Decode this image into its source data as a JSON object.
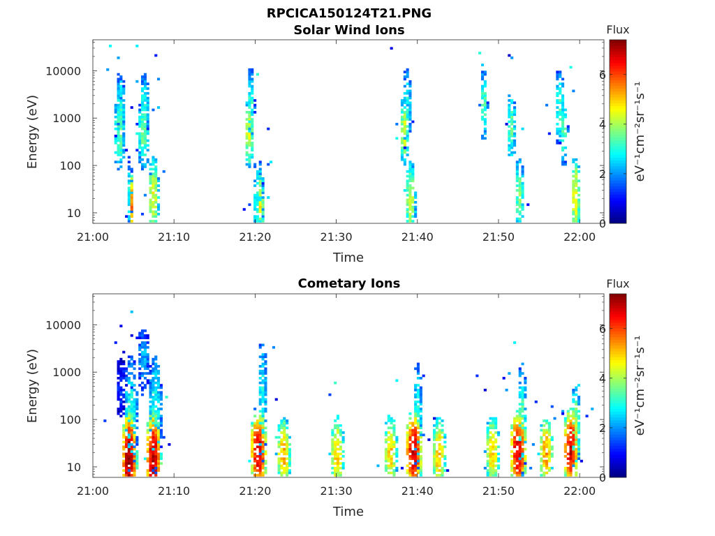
{
  "figure_title": "RPCICA150124T21.PNG",
  "colorbar": {
    "label_prefix": "Flux",
    "units_html": "eV⁻¹cm⁻²sr⁻¹s⁻¹",
    "ticks": [
      "0",
      "2",
      "4",
      "6"
    ],
    "range": [
      0,
      7.4
    ],
    "colormap": "jet"
  },
  "chart_data": [
    {
      "type": "heatmap",
      "title": "Solar Wind Ions",
      "xlabel": "Time",
      "ylabel": "Energy (eV)",
      "x_ticks": [
        "21:00",
        "21:10",
        "21:20",
        "21:30",
        "21:40",
        "21:50",
        "22:00"
      ],
      "y_ticks": [
        "10",
        "100",
        "1000",
        "10000"
      ],
      "y_scale": "log",
      "xlim_minutes": [
        0,
        63
      ],
      "ylim": [
        6,
        45000
      ],
      "blobs": [
        {
          "t": 3.0,
          "e": 450,
          "v": 3.5,
          "dt": 0.8,
          "de": 1.6
        },
        {
          "t": 3.2,
          "e": 1300,
          "v": 3.0,
          "dt": 0.6,
          "de": 1.8
        },
        {
          "t": 3.2,
          "e": 2000,
          "v": 3.0,
          "dt": 0.6,
          "de": 1.2
        },
        {
          "t": 6.0,
          "e": 450,
          "v": 3.5,
          "dt": 0.8,
          "de": 1.6
        },
        {
          "t": 6.3,
          "e": 1700,
          "v": 3.0,
          "dt": 0.6,
          "de": 1.4
        },
        {
          "t": 4.4,
          "e": 22,
          "v": 3.0,
          "dt": 0.4,
          "de": 1.5
        },
        {
          "t": 4.7,
          "e": 14,
          "v": 5.6,
          "dt": 0.3,
          "de": 1.5
        },
        {
          "t": 7.3,
          "e": 20,
          "v": 4.5,
          "dt": 0.7,
          "de": 1.8
        },
        {
          "t": 19.0,
          "e": 450,
          "v": 4.5,
          "dt": 0.6,
          "de": 1.5
        },
        {
          "t": 19.2,
          "e": 1500,
          "v": 3.2,
          "dt": 0.5,
          "de": 1.8
        },
        {
          "t": 20.3,
          "e": 18,
          "v": 3.0,
          "dt": 0.7,
          "de": 1.8
        },
        {
          "t": 20.6,
          "e": 14,
          "v": 4.7,
          "dt": 0.4,
          "de": 1.5
        },
        {
          "t": 38.2,
          "e": 500,
          "v": 4.3,
          "dt": 0.6,
          "de": 1.5
        },
        {
          "t": 38.5,
          "e": 1400,
          "v": 3.0,
          "dt": 0.6,
          "de": 1.8
        },
        {
          "t": 39.1,
          "e": 18,
          "v": 4.2,
          "dt": 0.7,
          "de": 1.7
        },
        {
          "t": 48.1,
          "e": 1700,
          "v": 3.4,
          "dt": 0.5,
          "de": 1.5
        },
        {
          "t": 51.5,
          "e": 600,
          "v": 3.4,
          "dt": 0.6,
          "de": 1.6
        },
        {
          "t": 52.3,
          "e": 20,
          "v": 3.6,
          "dt": 0.6,
          "de": 1.8
        },
        {
          "t": 57.3,
          "e": 1600,
          "v": 3.2,
          "dt": 0.6,
          "de": 1.7
        },
        {
          "t": 57.8,
          "e": 500,
          "v": 3.6,
          "dt": 0.5,
          "de": 1.4
        },
        {
          "t": 59.2,
          "e": 20,
          "v": 4.6,
          "dt": 0.6,
          "de": 1.8
        }
      ]
    },
    {
      "type": "heatmap",
      "title": "Cometary Ions",
      "xlabel": "Time",
      "ylabel": "Energy (eV)",
      "x_ticks": [
        "21:00",
        "21:10",
        "21:20",
        "21:30",
        "21:40",
        "21:50",
        "22:00"
      ],
      "y_ticks": [
        "10",
        "100",
        "1000",
        "10000"
      ],
      "y_scale": "log",
      "xlim_minutes": [
        0,
        63
      ],
      "ylim": [
        6,
        45000
      ],
      "blobs": [
        {
          "t": 4.3,
          "e": 14,
          "v": 7.2,
          "dt": 1.0,
          "de": 2.1
        },
        {
          "t": 4.5,
          "e": 120,
          "v": 3.0,
          "dt": 0.9,
          "de": 2.5
        },
        {
          "t": 3.2,
          "e": 450,
          "v": 1.2,
          "dt": 0.7,
          "de": 1.3
        },
        {
          "t": 7.3,
          "e": 14,
          "v": 7.0,
          "dt": 1.0,
          "de": 2.1
        },
        {
          "t": 7.6,
          "e": 120,
          "v": 3.0,
          "dt": 0.9,
          "de": 2.6
        },
        {
          "t": 6.0,
          "e": 1700,
          "v": 2.2,
          "dt": 0.8,
          "de": 1.4
        },
        {
          "t": 20.2,
          "e": 20,
          "v": 6.8,
          "dt": 1.1,
          "de": 1.8
        },
        {
          "t": 20.8,
          "e": 200,
          "v": 3.0,
          "dt": 0.6,
          "de": 2.8
        },
        {
          "t": 23.4,
          "e": 18,
          "v": 5.2,
          "dt": 0.9,
          "de": 1.6
        },
        {
          "t": 29.9,
          "e": 18,
          "v": 5.0,
          "dt": 0.9,
          "de": 1.7
        },
        {
          "t": 36.7,
          "e": 20,
          "v": 5.0,
          "dt": 0.9,
          "de": 1.6
        },
        {
          "t": 39.5,
          "e": 20,
          "v": 6.8,
          "dt": 1.1,
          "de": 1.8
        },
        {
          "t": 39.8,
          "e": 100,
          "v": 3.0,
          "dt": 0.6,
          "de": 2.4
        },
        {
          "t": 42.5,
          "e": 18,
          "v": 5.2,
          "dt": 0.9,
          "de": 1.6
        },
        {
          "t": 49.2,
          "e": 20,
          "v": 5.0,
          "dt": 0.9,
          "de": 1.6
        },
        {
          "t": 52.2,
          "e": 20,
          "v": 6.8,
          "dt": 1.1,
          "de": 1.8
        },
        {
          "t": 52.8,
          "e": 90,
          "v": 3.4,
          "dt": 0.6,
          "de": 2.5
        },
        {
          "t": 55.6,
          "e": 18,
          "v": 5.4,
          "dt": 0.9,
          "de": 1.6
        },
        {
          "t": 58.8,
          "e": 22,
          "v": 6.8,
          "dt": 1.0,
          "de": 1.8
        },
        {
          "t": 59.5,
          "e": 60,
          "v": 4.0,
          "dt": 0.6,
          "de": 1.8
        }
      ]
    }
  ]
}
